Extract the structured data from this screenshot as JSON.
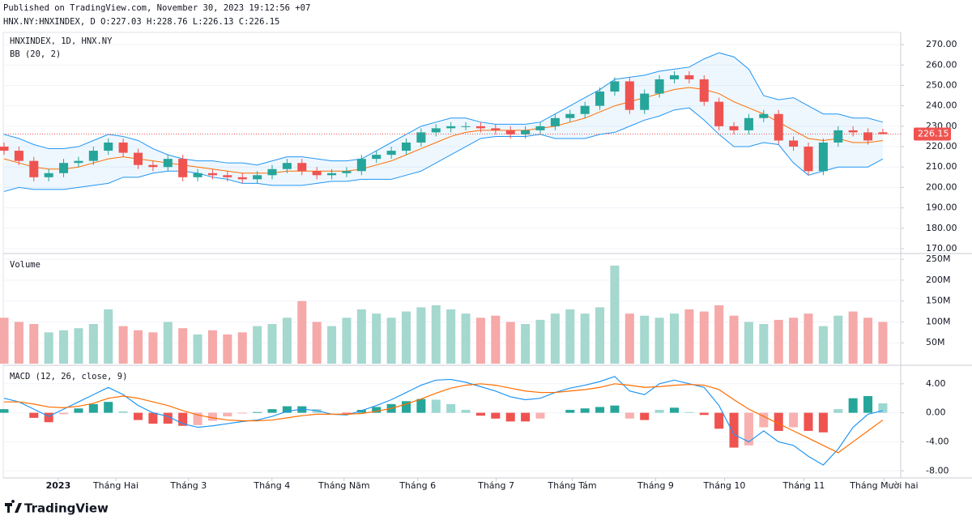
{
  "header": {
    "published": "Published on TradingView.com, November 30, 2023 19:12:56 +07",
    "ohlc": "HNX.NY:HNXINDEX, D O:227.03 H:228.76 L:226.13 C:226.15",
    "brand": "TradingView"
  },
  "chart_data": [
    {
      "type": "candlestick",
      "title": "HNXINDEX, 1D, HNX.NY",
      "indicator": "BB (20, 2)",
      "open": [
        220,
        218,
        213,
        205,
        207,
        212,
        213,
        218,
        222,
        217,
        211,
        210,
        214,
        205,
        207,
        206,
        205,
        204,
        206,
        209,
        212,
        208,
        206,
        207,
        208,
        214,
        216,
        218,
        222,
        227,
        229,
        230,
        230,
        229,
        228,
        226,
        228,
        230,
        234,
        236,
        240,
        247,
        252,
        238,
        246,
        253,
        255,
        253,
        242,
        230,
        228,
        234,
        236,
        223,
        220,
        208,
        222,
        228,
        227,
        227.03
      ],
      "high": [
        222,
        220,
        215,
        209,
        214,
        215,
        220,
        224,
        224,
        219,
        213,
        216,
        216,
        209,
        209,
        208,
        207,
        208,
        211,
        214,
        214,
        210,
        209,
        210,
        216,
        218,
        220,
        224,
        229,
        231,
        232,
        232,
        232,
        231,
        230,
        230,
        232,
        236,
        238,
        242,
        249,
        254,
        254,
        248,
        255,
        257,
        257,
        255,
        244,
        232,
        236,
        238,
        238,
        225,
        222,
        224,
        230,
        230,
        229,
        228.76
      ],
      "low": [
        216,
        211,
        203,
        203,
        205,
        210,
        211,
        216,
        215,
        209,
        208,
        208,
        203,
        203,
        204,
        203,
        202,
        202,
        204,
        207,
        206,
        204,
        204,
        205,
        206,
        212,
        214,
        216,
        220,
        225,
        227,
        228,
        227,
        226,
        224,
        224,
        226,
        228,
        232,
        234,
        238,
        245,
        236,
        236,
        244,
        251,
        251,
        240,
        228,
        226,
        226,
        232,
        221,
        218,
        206,
        206,
        220,
        225,
        221,
        226.13
      ],
      "close": [
        218,
        213,
        205,
        207,
        212,
        213,
        218,
        222,
        217,
        211,
        210,
        214,
        205,
        207,
        206,
        205,
        204,
        206,
        209,
        212,
        208,
        206,
        207,
        208,
        214,
        216,
        218,
        222,
        227,
        229,
        230,
        230,
        229,
        228,
        226,
        228,
        230,
        234,
        236,
        240,
        247,
        252,
        238,
        246,
        253,
        255,
        253,
        242,
        230,
        228,
        234,
        236,
        223,
        220,
        208,
        222,
        228,
        227,
        223,
        226.15
      ],
      "up_color": "#26a69a",
      "down_color": "#ef5350",
      "bands": {
        "upper": [
          226,
          224,
          221,
          219,
          219,
          220,
          223,
          226,
          225,
          223,
          219,
          216,
          214,
          213,
          213,
          212,
          212,
          211,
          213,
          215,
          215,
          214,
          213,
          213,
          214,
          218,
          222,
          226,
          230,
          232,
          234,
          234,
          232,
          231,
          231,
          231,
          232,
          236,
          240,
          244,
          248,
          253,
          254,
          255,
          257,
          258,
          259,
          263,
          266,
          264,
          258,
          245,
          243,
          244,
          240,
          236,
          236,
          234,
          234,
          232
        ],
        "middle": [
          214,
          212,
          210,
          209,
          209,
          210,
          212,
          214,
          215,
          214,
          213,
          212,
          211,
          210,
          209,
          208,
          207,
          207,
          207,
          208,
          208,
          208,
          208,
          208,
          209,
          211,
          213,
          216,
          219,
          222,
          225,
          227,
          228,
          228,
          228,
          228,
          229,
          230,
          232,
          234,
          237,
          240,
          242,
          244,
          246,
          248,
          249,
          248,
          246,
          242,
          239,
          236,
          232,
          228,
          224,
          223,
          224,
          222,
          222,
          223
        ],
        "lower": [
          198,
          200,
          199,
          199,
          199,
          200,
          201,
          202,
          205,
          205,
          207,
          208,
          208,
          207,
          205,
          204,
          202,
          202,
          201,
          201,
          201,
          202,
          203,
          203,
          204,
          204,
          204,
          206,
          208,
          212,
          216,
          220,
          224,
          225,
          225,
          225,
          226,
          224,
          224,
          224,
          226,
          227,
          230,
          233,
          235,
          238,
          239,
          233,
          226,
          220,
          220,
          222,
          221,
          212,
          206,
          208,
          210,
          210,
          210,
          214
        ],
        "band_color": "#2196f3",
        "middle_color": "#ff6d00"
      },
      "last_value": 226.15,
      "ylim": [
        168,
        276
      ],
      "yticks": [
        {
          "value": 170,
          "label": "170.00"
        },
        {
          "value": 180,
          "label": "180.00"
        },
        {
          "value": 190,
          "label": "190.00"
        },
        {
          "value": 200,
          "label": "200.00"
        },
        {
          "value": 210,
          "label": "210.00"
        },
        {
          "value": 220,
          "label": "220.00"
        },
        {
          "value": 230,
          "label": "230.00"
        },
        {
          "value": 240,
          "label": "240.00"
        },
        {
          "value": 250,
          "label": "250.00"
        },
        {
          "value": 260,
          "label": "260.00"
        },
        {
          "value": 270,
          "label": "270.00"
        }
      ]
    },
    {
      "type": "volume",
      "title": "Volume",
      "values": [
        110,
        100,
        95,
        75,
        80,
        85,
        95,
        130,
        90,
        80,
        75,
        100,
        85,
        70,
        80,
        70,
        75,
        90,
        95,
        110,
        150,
        100,
        90,
        110,
        130,
        120,
        110,
        125,
        135,
        140,
        130,
        120,
        110,
        115,
        100,
        95,
        105,
        120,
        130,
        120,
        135,
        235,
        120,
        115,
        110,
        120,
        130,
        125,
        140,
        115,
        100,
        95,
        105,
        110,
        120,
        90,
        115,
        125,
        110,
        100
      ],
      "up_color": "#a5d8cf",
      "down_color": "#f5a9a8",
      "ylim": [
        0,
        260
      ],
      "yticks": [
        {
          "value": 50,
          "label": "50M"
        },
        {
          "value": 100,
          "label": "100M"
        },
        {
          "value": 150,
          "label": "150M"
        },
        {
          "value": 200,
          "label": "200M"
        },
        {
          "value": 250,
          "label": "250M"
        }
      ]
    },
    {
      "type": "macd",
      "title": "MACD (12, 26, close, 9)",
      "macd": [
        2,
        1.5,
        0.5,
        -0.5,
        0.5,
        1.5,
        2.5,
        3.5,
        2.5,
        1,
        0,
        -0.5,
        -1.5,
        -2,
        -1.8,
        -1.5,
        -1.2,
        -1,
        -0.5,
        0.2,
        0.5,
        0.3,
        -0.2,
        -0.3,
        0.3,
        1,
        1.8,
        2.8,
        3.8,
        4.5,
        4.6,
        4.2,
        3.6,
        3,
        2.2,
        1.8,
        2,
        2.8,
        3.4,
        3.8,
        4.3,
        5,
        3,
        2.5,
        4,
        4.5,
        4,
        3.5,
        1,
        -3,
        -4,
        -2.5,
        -4,
        -4.5,
        -6,
        -7.2,
        -5,
        -2,
        -0.2,
        0.3
      ],
      "signal": [
        1.5,
        1.5,
        1.2,
        0.8,
        0.7,
        0.9,
        1.3,
        2,
        2.3,
        2,
        1.5,
        1,
        0.3,
        -0.3,
        -0.7,
        -1,
        -1.1,
        -1.1,
        -1,
        -0.7,
        -0.4,
        -0.2,
        -0.2,
        -0.2,
        -0.1,
        0.2,
        0.6,
        1.2,
        1.9,
        2.7,
        3.4,
        3.8,
        4,
        3.8,
        3.4,
        3,
        2.8,
        2.8,
        3,
        3.2,
        3.5,
        4,
        3.8,
        3.5,
        3.6,
        3.8,
        3.9,
        3.8,
        3.2,
        1.8,
        0.5,
        -0.5,
        -1.5,
        -2.5,
        -3.5,
        -4.5,
        -5.5,
        -4,
        -2.5,
        -1
      ],
      "histogram": [
        0.5,
        0,
        -0.7,
        -1.3,
        -0.2,
        0.6,
        1.2,
        1.5,
        0.2,
        -1,
        -1.5,
        -1.5,
        -1.8,
        -1.7,
        -1.1,
        -0.5,
        -0.1,
        0.1,
        0.5,
        0.9,
        0.9,
        0.5,
        0,
        -0.1,
        0.4,
        0.8,
        1.2,
        1.6,
        1.9,
        1.8,
        1.2,
        0.4,
        -0.4,
        -0.8,
        -1.2,
        -1.2,
        -0.8,
        0,
        0.4,
        0.6,
        0.8,
        1,
        -0.8,
        -1,
        0.4,
        0.7,
        0.1,
        -0.3,
        -2.2,
        -4.8,
        -4.5,
        -2,
        -2.5,
        -2,
        -2.5,
        -2.7,
        0.5,
        2,
        2.3,
        1.3
      ],
      "macd_color": "#2196f3",
      "signal_color": "#ff6d00",
      "up_color": "#26a69a",
      "down_color": "#ef5350",
      "ylim": [
        -9.2,
        6.1
      ],
      "yticks": [
        {
          "value": -8,
          "label": "-8.00"
        },
        {
          "value": -4,
          "label": "-4.00"
        },
        {
          "value": 0,
          "label": "0.00"
        },
        {
          "value": 4,
          "label": "4.00"
        }
      ],
      "xlim": [
        0,
        60.2
      ],
      "xticks": [
        {
          "value": 3.64,
          "label": "2023"
        },
        {
          "value": 7.5,
          "label": "Tháng Hai"
        },
        {
          "value": 12.39,
          "label": "Tháng 3"
        },
        {
          "value": 17.99,
          "label": "Tháng 4"
        },
        {
          "value": 22.83,
          "label": "Tháng Năm"
        },
        {
          "value": 27.77,
          "label": "Tháng 6"
        },
        {
          "value": 33.04,
          "label": "Tháng 7"
        },
        {
          "value": 38.15,
          "label": "Tháng Tám"
        },
        {
          "value": 43.75,
          "label": "Tháng 9"
        },
        {
          "value": 48.37,
          "label": "Tháng 10"
        },
        {
          "value": 53.7,
          "label": "Tháng 11"
        },
        {
          "value": 59.08,
          "label": "Tháng Mười hai"
        }
      ]
    }
  ]
}
